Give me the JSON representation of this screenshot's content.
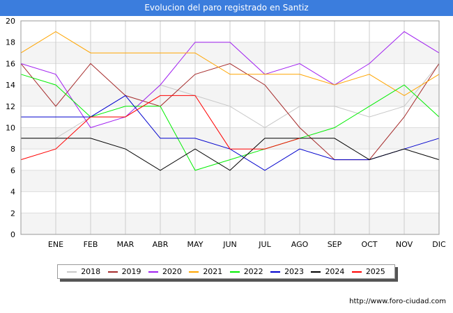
{
  "title": "Evolucion del paro registrado en Santiz",
  "source": "http://www.foro-ciudad.com",
  "chart_data": {
    "type": "line",
    "categories": [
      "",
      "ENE",
      "FEB",
      "MAR",
      "ABR",
      "MAY",
      "JUN",
      "JUL",
      "AGO",
      "SEP",
      "OCT",
      "NOV",
      "DIC"
    ],
    "ylim": [
      0,
      20
    ],
    "yticks": [
      0,
      2,
      4,
      6,
      8,
      10,
      12,
      14,
      16,
      18,
      20
    ],
    "grid": true,
    "legend_position": "bottom",
    "series": [
      {
        "name": "2018",
        "color": "#c8c8c8",
        "values": [
          9,
          9,
          11,
          11,
          14,
          13,
          12,
          10,
          12,
          12,
          11,
          12,
          16
        ]
      },
      {
        "name": "2019",
        "color": "#a52a2a",
        "values": [
          16,
          12,
          16,
          13,
          12,
          15,
          16,
          14,
          10,
          7,
          7,
          11,
          16
        ]
      },
      {
        "name": "2020",
        "color": "#a020f0",
        "values": [
          16,
          15,
          10,
          11,
          14,
          18,
          18,
          15,
          16,
          14,
          16,
          19,
          17
        ]
      },
      {
        "name": "2021",
        "color": "#ffa500",
        "values": [
          17,
          19,
          17,
          17,
          17,
          17,
          15,
          15,
          15,
          14,
          15,
          13,
          15
        ]
      },
      {
        "name": "2022",
        "color": "#00ee00",
        "values": [
          15,
          14,
          11,
          12,
          12,
          6,
          7,
          8,
          9,
          10,
          12,
          14,
          11
        ]
      },
      {
        "name": "2023",
        "color": "#0000cd",
        "values": [
          11,
          11,
          11,
          13,
          9,
          9,
          8,
          6,
          8,
          7,
          7,
          8,
          9
        ]
      },
      {
        "name": "2024",
        "color": "#000000",
        "values": [
          9,
          9,
          9,
          8,
          6,
          8,
          6,
          9,
          9,
          9,
          7,
          8,
          7
        ]
      },
      {
        "name": "2025",
        "color": "#ff0000",
        "values": [
          7,
          8,
          11,
          11,
          13,
          13,
          8,
          8,
          9,
          null,
          null,
          null,
          null
        ]
      }
    ]
  }
}
